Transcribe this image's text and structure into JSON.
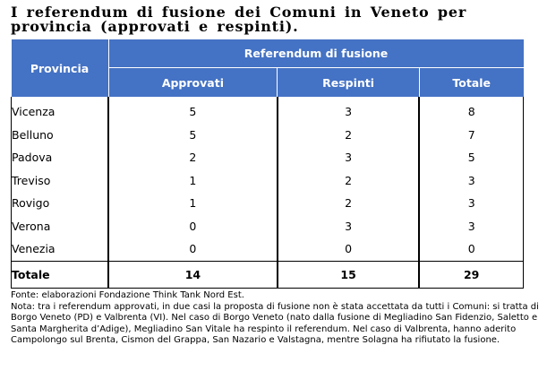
{
  "title": "I referendum di fusione dei Comuni in Veneto per provincia (approvati e respinti).",
  "table": {
    "header_provincia": "Provincia",
    "header_group": "Referendum di fusione",
    "header_cols": [
      "Approvati",
      "Respinti",
      "Totale"
    ],
    "rows": [
      {
        "provincia": "Vicenza",
        "approvati": "5",
        "respinti": "3",
        "totale": "8"
      },
      {
        "provincia": "Belluno",
        "approvati": "5",
        "respinti": "2",
        "totale": "7"
      },
      {
        "provincia": "Padova",
        "approvati": "2",
        "respinti": "3",
        "totale": "5"
      },
      {
        "provincia": "Treviso",
        "approvati": "1",
        "respinti": "2",
        "totale": "3"
      },
      {
        "provincia": "Rovigo",
        "approvati": "1",
        "respinti": "2",
        "totale": "3"
      },
      {
        "provincia": "Verona",
        "approvati": "0",
        "respinti": "3",
        "totale": "3"
      },
      {
        "provincia": "Venezia",
        "approvati": "0",
        "respinti": "0",
        "totale": "0"
      }
    ],
    "total_row": {
      "label": "Totale",
      "approvati": "14",
      "respinti": "15",
      "totale": "29"
    }
  },
  "source": "Fonte: elaborazioni Fondazione Think Tank Nord Est.",
  "note": "Nota: tra i referendum approvati, in due casi la proposta di fusione non è stata accettata da tutti i Comuni: si tratta di Borgo Veneto (PD) e Valbrenta (VI). Nel caso di Borgo Veneto (nato dalla fusione di Megliadino San Fidenzio, Saletto e Santa Margherita d’Adige), Megliadino San Vitale ha respinto il referendum. Nel caso di Valbrenta, hanno aderito Campolongo sul Brenta, Cismon del Grappa, San Nazario e Valstagna, mentre Solagna ha rifiutato la fusione.",
  "colors": {
    "header_bg": "#4472c4",
    "header_text": "#ffffff"
  },
  "chart_data": {
    "type": "table",
    "title": "I referendum di fusione dei Comuni in Veneto per provincia (approvati e respinti).",
    "columns": [
      "Provincia",
      "Approvati",
      "Respinti",
      "Totale"
    ],
    "categories": [
      "Vicenza",
      "Belluno",
      "Padova",
      "Treviso",
      "Rovigo",
      "Verona",
      "Venezia"
    ],
    "series": [
      {
        "name": "Approvati",
        "values": [
          5,
          5,
          2,
          1,
          1,
          0,
          0
        ]
      },
      {
        "name": "Respinti",
        "values": [
          3,
          2,
          3,
          2,
          2,
          3,
          0
        ]
      },
      {
        "name": "Totale",
        "values": [
          8,
          7,
          5,
          3,
          3,
          3,
          0
        ]
      }
    ],
    "totals": {
      "Approvati": 14,
      "Respinti": 15,
      "Totale": 29
    }
  }
}
